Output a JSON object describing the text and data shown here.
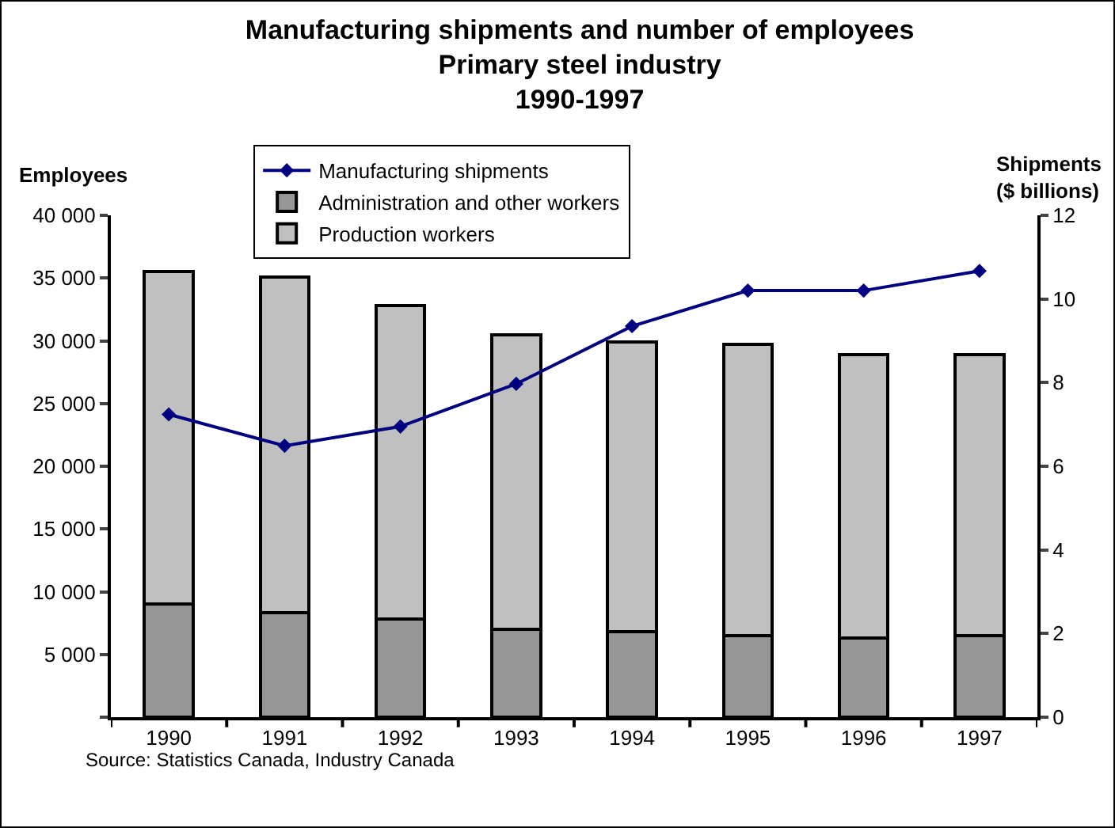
{
  "chart_data": {
    "type": "bar",
    "title": "Manufacturing shipments and number of employees\nPrimary steel industry\n1990-1997",
    "ylabel": "Employees",
    "y2label": "Shipments\n($ billions)",
    "categories": [
      "1990",
      "1991",
      "1992",
      "1993",
      "1994",
      "1995",
      "1996",
      "1997"
    ],
    "stacked": true,
    "series": [
      {
        "name": "Administration and other workers",
        "color": "#969696",
        "values": [
          9000,
          8300,
          7800,
          7000,
          6800,
          6500,
          6300,
          6500
        ]
      },
      {
        "name": "Production workers",
        "color": "#c0c0c0",
        "values": [
          26500,
          26800,
          25000,
          23500,
          23100,
          23200,
          22600,
          22400
        ]
      },
      {
        "name": "Manufacturing shipments",
        "type": "line",
        "axis": "y2",
        "color": "#000080",
        "marker": "diamond",
        "values": [
          7.24,
          6.49,
          6.95,
          7.97,
          9.35,
          10.2,
          10.2,
          10.67
        ]
      }
    ],
    "ylim": [
      0,
      40000
    ],
    "yticks": [
      {
        "value": 0,
        "label": null
      },
      {
        "value": 5000,
        "label": "5 000"
      },
      {
        "value": 10000,
        "label": "10 000"
      },
      {
        "value": 15000,
        "label": "15 000"
      },
      {
        "value": 20000,
        "label": "20 000"
      },
      {
        "value": 25000,
        "label": "25 000"
      },
      {
        "value": 30000,
        "label": "30 000"
      },
      {
        "value": 35000,
        "label": "35 000"
      },
      {
        "value": 40000,
        "label": "40 000"
      }
    ],
    "y2lim": [
      0,
      12
    ],
    "y2ticks": [
      0,
      2,
      4,
      6,
      8,
      10,
      12
    ],
    "grid": false,
    "legend": "top",
    "annotations": [
      "Source: Statistics Canada, Industry Canada"
    ]
  }
}
